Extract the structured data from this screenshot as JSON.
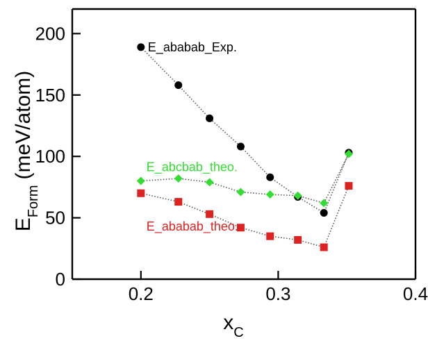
{
  "chart_data": {
    "type": "line",
    "title": "",
    "xlabel": "x",
    "xlabel_sub": "C",
    "ylabel": "E",
    "ylabel_sub": "Form",
    "ylabel_unit": "(meV/atom)",
    "xlim": [
      0.15,
      0.4
    ],
    "ylim": [
      0,
      220
    ],
    "xticks": [
      0.2,
      0.3,
      0.4
    ],
    "yticks": [
      0,
      50,
      100,
      150,
      200
    ],
    "xtick_labels": [
      "0.2",
      "0.3",
      "0.4"
    ],
    "ytick_labels": [
      "0",
      "50",
      "100",
      "150",
      "200"
    ],
    "grid": false,
    "legend": "none",
    "series": [
      {
        "name": "E_ababab_Exp.",
        "color": "#000000",
        "marker": "circle",
        "x": [
          0.2,
          0.2273,
          0.25,
          0.2727,
          0.2941,
          0.3143,
          0.3333,
          0.3514
        ],
        "y": [
          189,
          158,
          131,
          108,
          83,
          67,
          54,
          103
        ]
      },
      {
        "name": "E_abcbab_theo.",
        "color": "#33dd33",
        "marker": "diamond",
        "x": [
          0.2,
          0.2273,
          0.25,
          0.2727,
          0.2941,
          0.3143,
          0.3333,
          0.3514
        ],
        "y": [
          80,
          82,
          79,
          71,
          69,
          68,
          62,
          102
        ]
      },
      {
        "name": "E_ababab_theo.",
        "color": "#dd2222",
        "marker": "square",
        "x": [
          0.2,
          0.2273,
          0.25,
          0.2727,
          0.2941,
          0.3143,
          0.3333,
          0.3514
        ],
        "y": [
          70,
          63,
          53,
          42,
          35,
          32,
          26,
          76
        ]
      }
    ]
  }
}
